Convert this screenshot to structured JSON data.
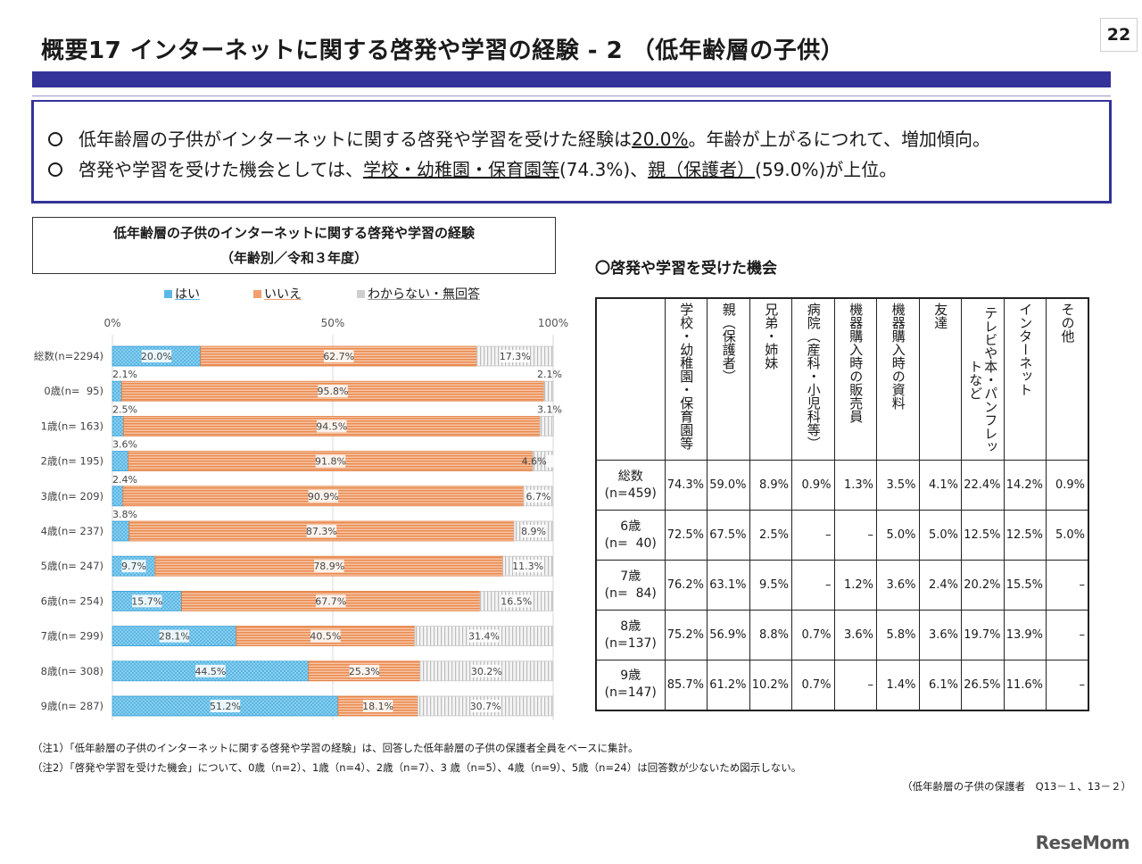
{
  "page_number": "22",
  "title": "概要17 インターネットに関する啓発や学習の経験 - 2 （低年齢層の子供）",
  "summary": {
    "line1": {
      "pre": "低年齢層の子供がインターネットに関する啓発や学習を受けた経験は",
      "underlined": "20.0%",
      "post": "。年齢が上がるにつれて、増加傾向。"
    },
    "line2": {
      "pre": "啓発や学習を受けた機会としては、",
      "u1": "学校・幼稚園・保育園等",
      "mid": "(74.3%)、",
      "u2": "親（保護者）",
      "post": "(59.0%)が上位。"
    }
  },
  "chart_box": {
    "line1": "低年齢層の子供のインターネットに関する啓発や学習の経験",
    "line2": "（年齢別／令和３年度）"
  },
  "colors": {
    "yes": "#5bb8e6",
    "no": "#f0a070",
    "dk": "#d8d8d8",
    "frame": "#333399"
  },
  "chart_data": {
    "type": "bar",
    "orientation": "horizontal-stacked-100",
    "title": "低年齢層の子供のインターネットに関する啓発や学習の経験（年齢別／令和３年度）",
    "xlim": [
      0,
      100
    ],
    "x_ticks": [
      "0%",
      "50%",
      "100%"
    ],
    "legend": [
      "はい",
      "いいえ",
      "わからない・無回答"
    ],
    "legend_position": "top",
    "categories": [
      "総数(n=2294)",
      "0歳(n=  95)",
      "1歳(n= 163)",
      "2歳(n= 195)",
      "3歳(n= 209)",
      "4歳(n= 237)",
      "5歳(n= 247)",
      "6歳(n= 254)",
      "7歳(n= 299)",
      "8歳(n= 308)",
      "9歳(n= 287)"
    ],
    "series": [
      {
        "name": "はい",
        "values": [
          20.0,
          2.1,
          2.5,
          3.6,
          2.4,
          3.8,
          9.7,
          15.7,
          28.1,
          44.5,
          51.2
        ]
      },
      {
        "name": "いいえ",
        "values": [
          62.7,
          95.8,
          94.5,
          91.8,
          90.9,
          87.3,
          78.9,
          67.7,
          40.5,
          25.3,
          18.1
        ]
      },
      {
        "name": "わからない・無回答",
        "values": [
          17.3,
          2.1,
          3.1,
          4.6,
          6.7,
          8.9,
          11.3,
          16.5,
          31.4,
          30.2,
          30.7
        ]
      }
    ]
  },
  "opportunities": {
    "title": "〇啓発や学習を受けた機会",
    "columns": [
      "学校・幼稚園・保育園等",
      "親（保護者）",
      "兄弟・姉妹",
      "病院（産科・小児科等）",
      "機器購入時の販売員",
      "機器購入時の資料",
      "友達",
      "テレビや本・パンフレットなど",
      "インターネット",
      "その他"
    ],
    "rows": [
      {
        "label1": "総数",
        "label2": "(n=459)",
        "values": [
          "74.3%",
          "59.0%",
          "8.9%",
          "0.9%",
          "1.3%",
          "3.5%",
          "4.1%",
          "22.4%",
          "14.2%",
          "0.9%"
        ]
      },
      {
        "label1": "6歳",
        "label2": "(n=  40)",
        "values": [
          "72.5%",
          "67.5%",
          "2.5%",
          "–",
          "–",
          "5.0%",
          "5.0%",
          "12.5%",
          "12.5%",
          "5.0%"
        ]
      },
      {
        "label1": "7歳",
        "label2": "(n=  84)",
        "values": [
          "76.2%",
          "63.1%",
          "9.5%",
          "–",
          "1.2%",
          "3.6%",
          "2.4%",
          "20.2%",
          "15.5%",
          "–"
        ]
      },
      {
        "label1": "8歳",
        "label2": "(n=137)",
        "values": [
          "75.2%",
          "56.9%",
          "8.8%",
          "0.7%",
          "3.6%",
          "5.8%",
          "3.6%",
          "19.7%",
          "13.9%",
          "–"
        ]
      },
      {
        "label1": "9歳",
        "label2": "(n=147)",
        "values": [
          "85.7%",
          "61.2%",
          "10.2%",
          "0.7%",
          "–",
          "1.4%",
          "6.1%",
          "26.5%",
          "11.6%",
          "–"
        ]
      }
    ]
  },
  "notes": {
    "note1": "（注1）「低年齢層の子供のインターネットに関する啓発や学習の経験」は、回答した低年齢層の子供の保護者全員をベースに集計。",
    "note2": "（注2）「啓発や学習を受けた機会」について、0歳（n=2）、1歳（n=4）、2歳（n=7）、3 歳（n=5）、4歳（n=9）、5歳（n=24）は回答数が少ないため図示しない。",
    "source": "（低年齢層の子供の保護者　Q13－１、13－２）"
  },
  "logo": "ReseMom"
}
